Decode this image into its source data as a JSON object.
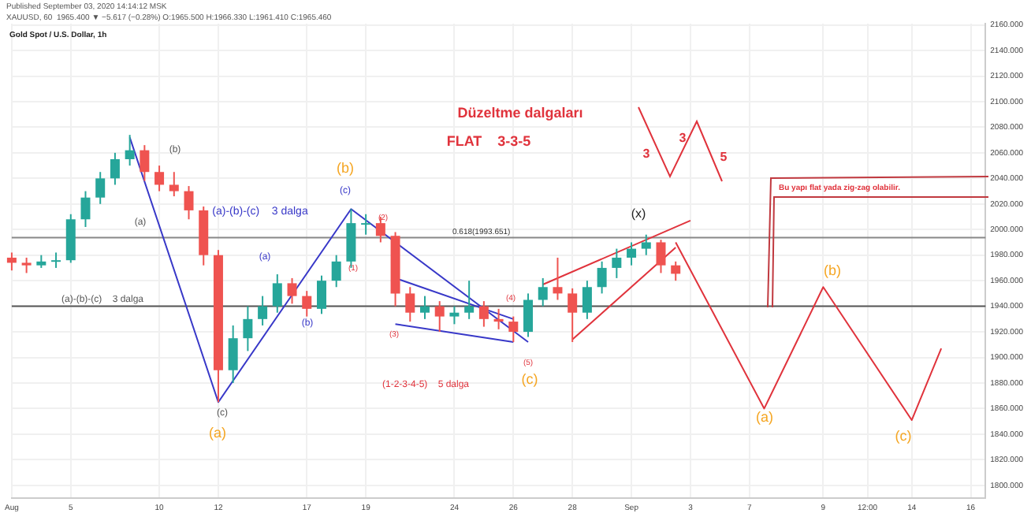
{
  "chart_data": {
    "type": "candlestick",
    "title": "Gold Spot / U.S. Dollar, 1h",
    "categories": [
      "Aug",
      null,
      null,
      null,
      "5",
      null,
      null,
      null,
      null,
      null,
      "10",
      null,
      null,
      null,
      "12",
      null,
      null,
      null,
      null,
      null,
      "17",
      null,
      null,
      null,
      "19",
      null,
      null,
      null,
      null,
      null,
      "24",
      null,
      null,
      null,
      "26",
      null,
      null,
      null,
      "28",
      null,
      null,
      null,
      "Sep",
      null,
      null,
      null,
      "3",
      null,
      null,
      null,
      "7",
      null,
      null,
      null,
      null,
      "9",
      null,
      null,
      "12:00",
      null,
      null,
      "14",
      null,
      null,
      null,
      "16",
      null
    ],
    "ohlc": [
      [
        1978,
        1982,
        1968,
        1974
      ],
      [
        1974,
        1978,
        1966,
        1972
      ],
      [
        1972,
        1980,
        1970,
        1975
      ],
      [
        1975,
        1982,
        1970,
        1976
      ],
      [
        1976,
        2012,
        1974,
        2008
      ],
      [
        2008,
        2030,
        2002,
        2025
      ],
      [
        2025,
        2045,
        2020,
        2040
      ],
      [
        2040,
        2060,
        2035,
        2055
      ],
      [
        2055,
        2074,
        2050,
        2062
      ],
      [
        2062,
        2066,
        2038,
        2045
      ],
      [
        2045,
        2050,
        2030,
        2035
      ],
      [
        2035,
        2045,
        2026,
        2030
      ],
      [
        2030,
        2034,
        2008,
        2015
      ],
      [
        2015,
        2018,
        1972,
        1980
      ],
      [
        1980,
        1984,
        1865,
        1890
      ],
      [
        1890,
        1925,
        1880,
        1915
      ],
      [
        1915,
        1940,
        1905,
        1930
      ],
      [
        1930,
        1948,
        1925,
        1940
      ],
      [
        1940,
        1965,
        1935,
        1958
      ],
      [
        1958,
        1962,
        1942,
        1948
      ],
      [
        1948,
        1952,
        1932,
        1938
      ],
      [
        1938,
        1964,
        1934,
        1960
      ],
      [
        1960,
        1980,
        1955,
        1975
      ],
      [
        1975,
        2016,
        1970,
        2005
      ],
      [
        2005,
        2012,
        1996,
        2005
      ],
      [
        2005,
        2010,
        1990,
        1995
      ],
      [
        1995,
        1998,
        1940,
        1950
      ],
      [
        1950,
        1955,
        1928,
        1935
      ],
      [
        1935,
        1948,
        1930,
        1940
      ],
      [
        1940,
        1944,
        1920,
        1932
      ],
      [
        1932,
        1940,
        1926,
        1935
      ],
      [
        1935,
        1960,
        1930,
        1940
      ],
      [
        1940,
        1944,
        1924,
        1930
      ],
      [
        1930,
        1938,
        1922,
        1928
      ],
      [
        1928,
        1932,
        1912,
        1920
      ],
      [
        1920,
        1950,
        1916,
        1945
      ],
      [
        1945,
        1962,
        1940,
        1955
      ],
      [
        1955,
        1978,
        1945,
        1950
      ],
      [
        1950,
        1954,
        1912,
        1935
      ],
      [
        1935,
        1960,
        1930,
        1955
      ],
      [
        1955,
        1975,
        1950,
        1970
      ],
      [
        1970,
        1985,
        1962,
        1978
      ],
      [
        1978,
        1990,
        1972,
        1985
      ],
      [
        1985,
        1996,
        1980,
        1990
      ],
      [
        1990,
        1992,
        1966,
        1972
      ],
      [
        1972,
        1975,
        1960,
        1965.4
      ],
      null,
      null,
      null,
      null,
      null,
      null,
      null,
      null,
      null,
      null,
      null,
      null,
      null,
      null,
      null,
      null,
      null,
      null,
      null,
      null,
      null
    ],
    "series": [
      {
        "type": "line",
        "color": "#3838c8",
        "values": [
          null,
          null,
          null,
          null,
          null,
          null,
          null,
          null,
          2072,
          null,
          null,
          null,
          null,
          null,
          1865,
          null,
          null,
          null,
          null,
          null,
          null,
          null,
          null,
          2016,
          null,
          null,
          null,
          null,
          null,
          null,
          null,
          null,
          null,
          null,
          null,
          1912,
          null,
          null,
          null,
          null,
          null,
          null,
          null,
          null,
          null,
          null,
          null,
          null,
          null,
          null,
          null,
          null,
          null,
          null,
          null,
          null,
          null,
          null,
          null,
          null,
          null,
          null,
          null,
          null,
          null,
          null,
          null
        ]
      },
      {
        "type": "line",
        "color": "#3838c8",
        "values": [
          null,
          null,
          null,
          null,
          null,
          null,
          null,
          null,
          null,
          null,
          null,
          null,
          null,
          null,
          null,
          null,
          null,
          null,
          null,
          null,
          null,
          null,
          null,
          null,
          null,
          null,
          1962,
          null,
          null,
          null,
          null,
          null,
          null,
          null,
          1930,
          null,
          null,
          null,
          null,
          null,
          null,
          null,
          null,
          null,
          null,
          null,
          null,
          null,
          null,
          null,
          null,
          null,
          null,
          null,
          null,
          null,
          null,
          null,
          null,
          null,
          null,
          null,
          null,
          null,
          null,
          null,
          null
        ]
      },
      {
        "type": "line",
        "color": "#3838c8",
        "values": [
          null,
          null,
          null,
          null,
          null,
          null,
          null,
          null,
          null,
          null,
          null,
          null,
          null,
          null,
          null,
          null,
          null,
          null,
          null,
          null,
          null,
          null,
          null,
          null,
          null,
          null,
          1926,
          null,
          null,
          null,
          null,
          null,
          null,
          null,
          1912,
          null,
          null,
          null,
          null,
          null,
          null,
          null,
          null,
          null,
          null,
          null,
          null,
          null,
          null,
          null,
          null,
          null,
          null,
          null,
          null,
          null,
          null,
          null,
          null,
          null,
          null,
          null,
          null,
          null,
          null,
          null,
          null
        ]
      },
      {
        "type": "line",
        "color": "#e0333c",
        "values": [
          null,
          null,
          null,
          null,
          null,
          null,
          null,
          null,
          null,
          null,
          null,
          null,
          null,
          null,
          null,
          null,
          null,
          null,
          null,
          null,
          null,
          null,
          null,
          null,
          null,
          null,
          null,
          null,
          null,
          null,
          null,
          null,
          null,
          null,
          null,
          null,
          null,
          null,
          1914,
          null,
          null,
          null,
          null,
          null,
          null,
          1986,
          null,
          null,
          null,
          null,
          null,
          null,
          null,
          null,
          null,
          null,
          null,
          null,
          null,
          null,
          null,
          null,
          null,
          null,
          null,
          null,
          null
        ]
      },
      {
        "type": "line",
        "color": "#e0333c",
        "values": [
          null,
          null,
          null,
          null,
          null,
          null,
          null,
          null,
          null,
          null,
          null,
          null,
          null,
          null,
          null,
          null,
          null,
          null,
          null,
          null,
          null,
          null,
          null,
          null,
          null,
          null,
          null,
          null,
          null,
          null,
          null,
          null,
          null,
          null,
          null,
          null,
          1957,
          null,
          null,
          null,
          null,
          null,
          null,
          null,
          null,
          null,
          2007,
          null,
          null,
          null,
          null,
          null,
          null,
          null,
          null,
          null,
          null,
          null,
          null,
          null,
          null,
          null,
          null,
          null,
          null,
          null,
          null
        ]
      },
      {
        "type": "line",
        "color": "#e0333c",
        "values": [
          null,
          null,
          null,
          null,
          null,
          null,
          null,
          null,
          null,
          null,
          null,
          null,
          null,
          null,
          null,
          null,
          null,
          null,
          null,
          null,
          null,
          null,
          null,
          null,
          null,
          null,
          null,
          null,
          null,
          null,
          null,
          null,
          null,
          null,
          null,
          null,
          null,
          null,
          null,
          null,
          null,
          null,
          null,
          null,
          null,
          1990,
          null,
          null,
          null,
          null,
          null,
          1860,
          null,
          null,
          null,
          1955,
          null,
          null,
          null,
          null,
          null,
          1851,
          null,
          1907,
          null,
          null,
          null
        ]
      }
    ],
    "ylim": [
      1790,
      2161
    ],
    "yticks": [
      {
        "value": 1800,
        "label": "1800.000"
      },
      {
        "value": 1820,
        "label": "1820.000"
      },
      {
        "value": 1840,
        "label": "1840.000"
      },
      {
        "value": 1860,
        "label": "1860.000"
      },
      {
        "value": 1880,
        "label": "1880.000"
      },
      {
        "value": 1900,
        "label": "1900.000"
      },
      {
        "value": 1920,
        "label": "1920.000"
      },
      {
        "value": 1940,
        "label": "1940.000"
      },
      {
        "value": 1960,
        "label": "1960.000"
      },
      {
        "value": 1980,
        "label": "1980.000"
      },
      {
        "value": 2000,
        "label": "2000.000"
      },
      {
        "value": 2020,
        "label": "2020.000"
      },
      {
        "value": 2040,
        "label": "2040.000"
      },
      {
        "value": 2060,
        "label": "2060.000"
      },
      {
        "value": 2080,
        "label": "2080.000"
      },
      {
        "value": 2100,
        "label": "2100.000"
      },
      {
        "value": 2120,
        "label": "2120.000"
      },
      {
        "value": 2140,
        "label": "2140.000"
      },
      {
        "value": 2160,
        "label": "2160.000"
      }
    ],
    "ref_lines": [
      {
        "axis": "y",
        "value": 1940,
        "color": "#555555"
      },
      {
        "axis": "y",
        "value": 1993.651,
        "label": "0.618(1993.651)",
        "color": "#888888"
      }
    ],
    "grid": true,
    "legend": false,
    "annotations": [
      "Published September 03, 2020 14:14:12 MSK",
      "XAUUSD, 60  1965.400 ▼ −5.617 (−0.28%) O:1965.500 H:1966.330 L:1961.410 C:1965.460",
      "Düzeltme dalgaları",
      "FLAT    3-3-5",
      "3",
      "3",
      "5",
      "Bu yapı flat yada zig-zag olabilir.",
      "(a)-(b)-(c)    3 dalga",
      "(a)-(b)-(c)    3 dalga",
      "(1-2-3-4-5)    5 dalga",
      "(b)",
      "(a)",
      "(c)",
      "(a)",
      "(b)",
      "(c)",
      "(a)",
      "(b)",
      "(1)",
      "(2)",
      "(3)",
      "(4)",
      "(5)",
      "(c)",
      "(x)",
      "(a)",
      "(b)",
      "(c)"
    ]
  }
}
